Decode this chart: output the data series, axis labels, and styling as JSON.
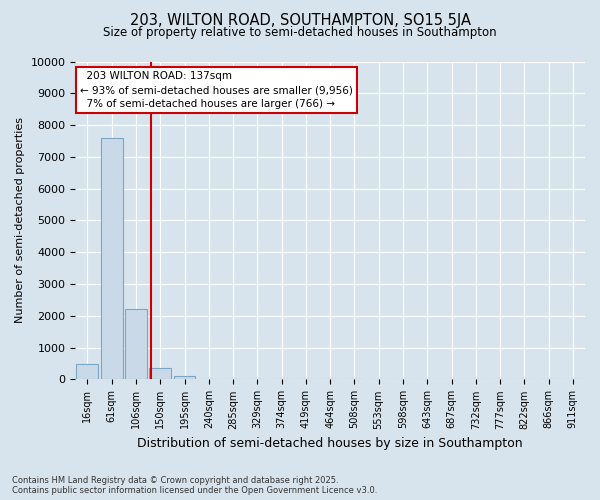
{
  "title_line1": "203, WILTON ROAD, SOUTHAMPTON, SO15 5JA",
  "title_line2": "Size of property relative to semi-detached houses in Southampton",
  "xlabel": "Distribution of semi-detached houses by size in Southampton",
  "ylabel": "Number of semi-detached properties",
  "categories": [
    "16sqm",
    "61sqm",
    "106sqm",
    "150sqm",
    "195sqm",
    "240sqm",
    "285sqm",
    "329sqm",
    "374sqm",
    "419sqm",
    "464sqm",
    "508sqm",
    "553sqm",
    "598sqm",
    "643sqm",
    "687sqm",
    "732sqm",
    "777sqm",
    "822sqm",
    "866sqm",
    "911sqm"
  ],
  "values": [
    500,
    7600,
    2200,
    350,
    100,
    20,
    3,
    0,
    0,
    0,
    0,
    0,
    0,
    0,
    0,
    0,
    0,
    0,
    0,
    0,
    0
  ],
  "bar_color": "#c9d9e8",
  "bar_edge_color": "#7ba7c7",
  "property_label": "203 WILTON ROAD: 137sqm",
  "pct_smaller": 93,
  "n_smaller": 9956,
  "pct_larger": 7,
  "n_larger": 766,
  "vline_color": "#cc0000",
  "vline_x": 2.63,
  "annotation_box_color": "#cc0000",
  "ylim": [
    0,
    10000
  ],
  "yticks": [
    0,
    1000,
    2000,
    3000,
    4000,
    5000,
    6000,
    7000,
    8000,
    9000,
    10000
  ],
  "grid_color": "#ffffff",
  "bg_color": "#d8e4ed",
  "footnote": "Contains HM Land Registry data © Crown copyright and database right 2025.\nContains public sector information licensed under the Open Government Licence v3.0."
}
